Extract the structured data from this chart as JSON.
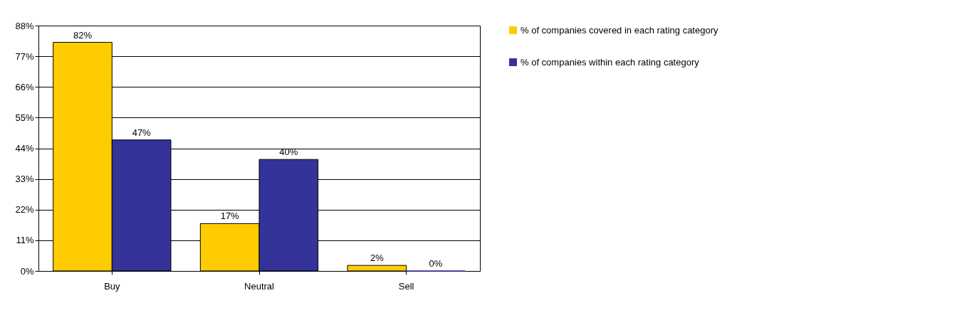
{
  "chart_data": {
    "type": "bar",
    "categories": [
      "Buy",
      "Neutral",
      "Sell"
    ],
    "series": [
      {
        "name": "% of companies covered in each rating category",
        "color": "#ffcc00",
        "values": [
          82,
          17,
          2
        ],
        "value_labels": [
          "82%",
          "17%",
          "2%"
        ]
      },
      {
        "name": "% of companies within each rating category",
        "color": "#333399",
        "values": [
          47,
          40,
          0
        ],
        "value_labels": [
          "47%",
          "40%",
          "0%"
        ]
      }
    ],
    "ylim": [
      0,
      88
    ],
    "yticks": [
      {
        "value": 0,
        "label": "0%"
      },
      {
        "value": 11,
        "label": "11%"
      },
      {
        "value": 22,
        "label": "22%"
      },
      {
        "value": 33,
        "label": "33%"
      },
      {
        "value": 44,
        "label": "44%"
      },
      {
        "value": 55,
        "label": "55%"
      },
      {
        "value": 66,
        "label": "66%"
      },
      {
        "value": 77,
        "label": "77%"
      },
      {
        "value": 88,
        "label": "88%"
      }
    ],
    "grid": "y",
    "legend": "top right"
  }
}
